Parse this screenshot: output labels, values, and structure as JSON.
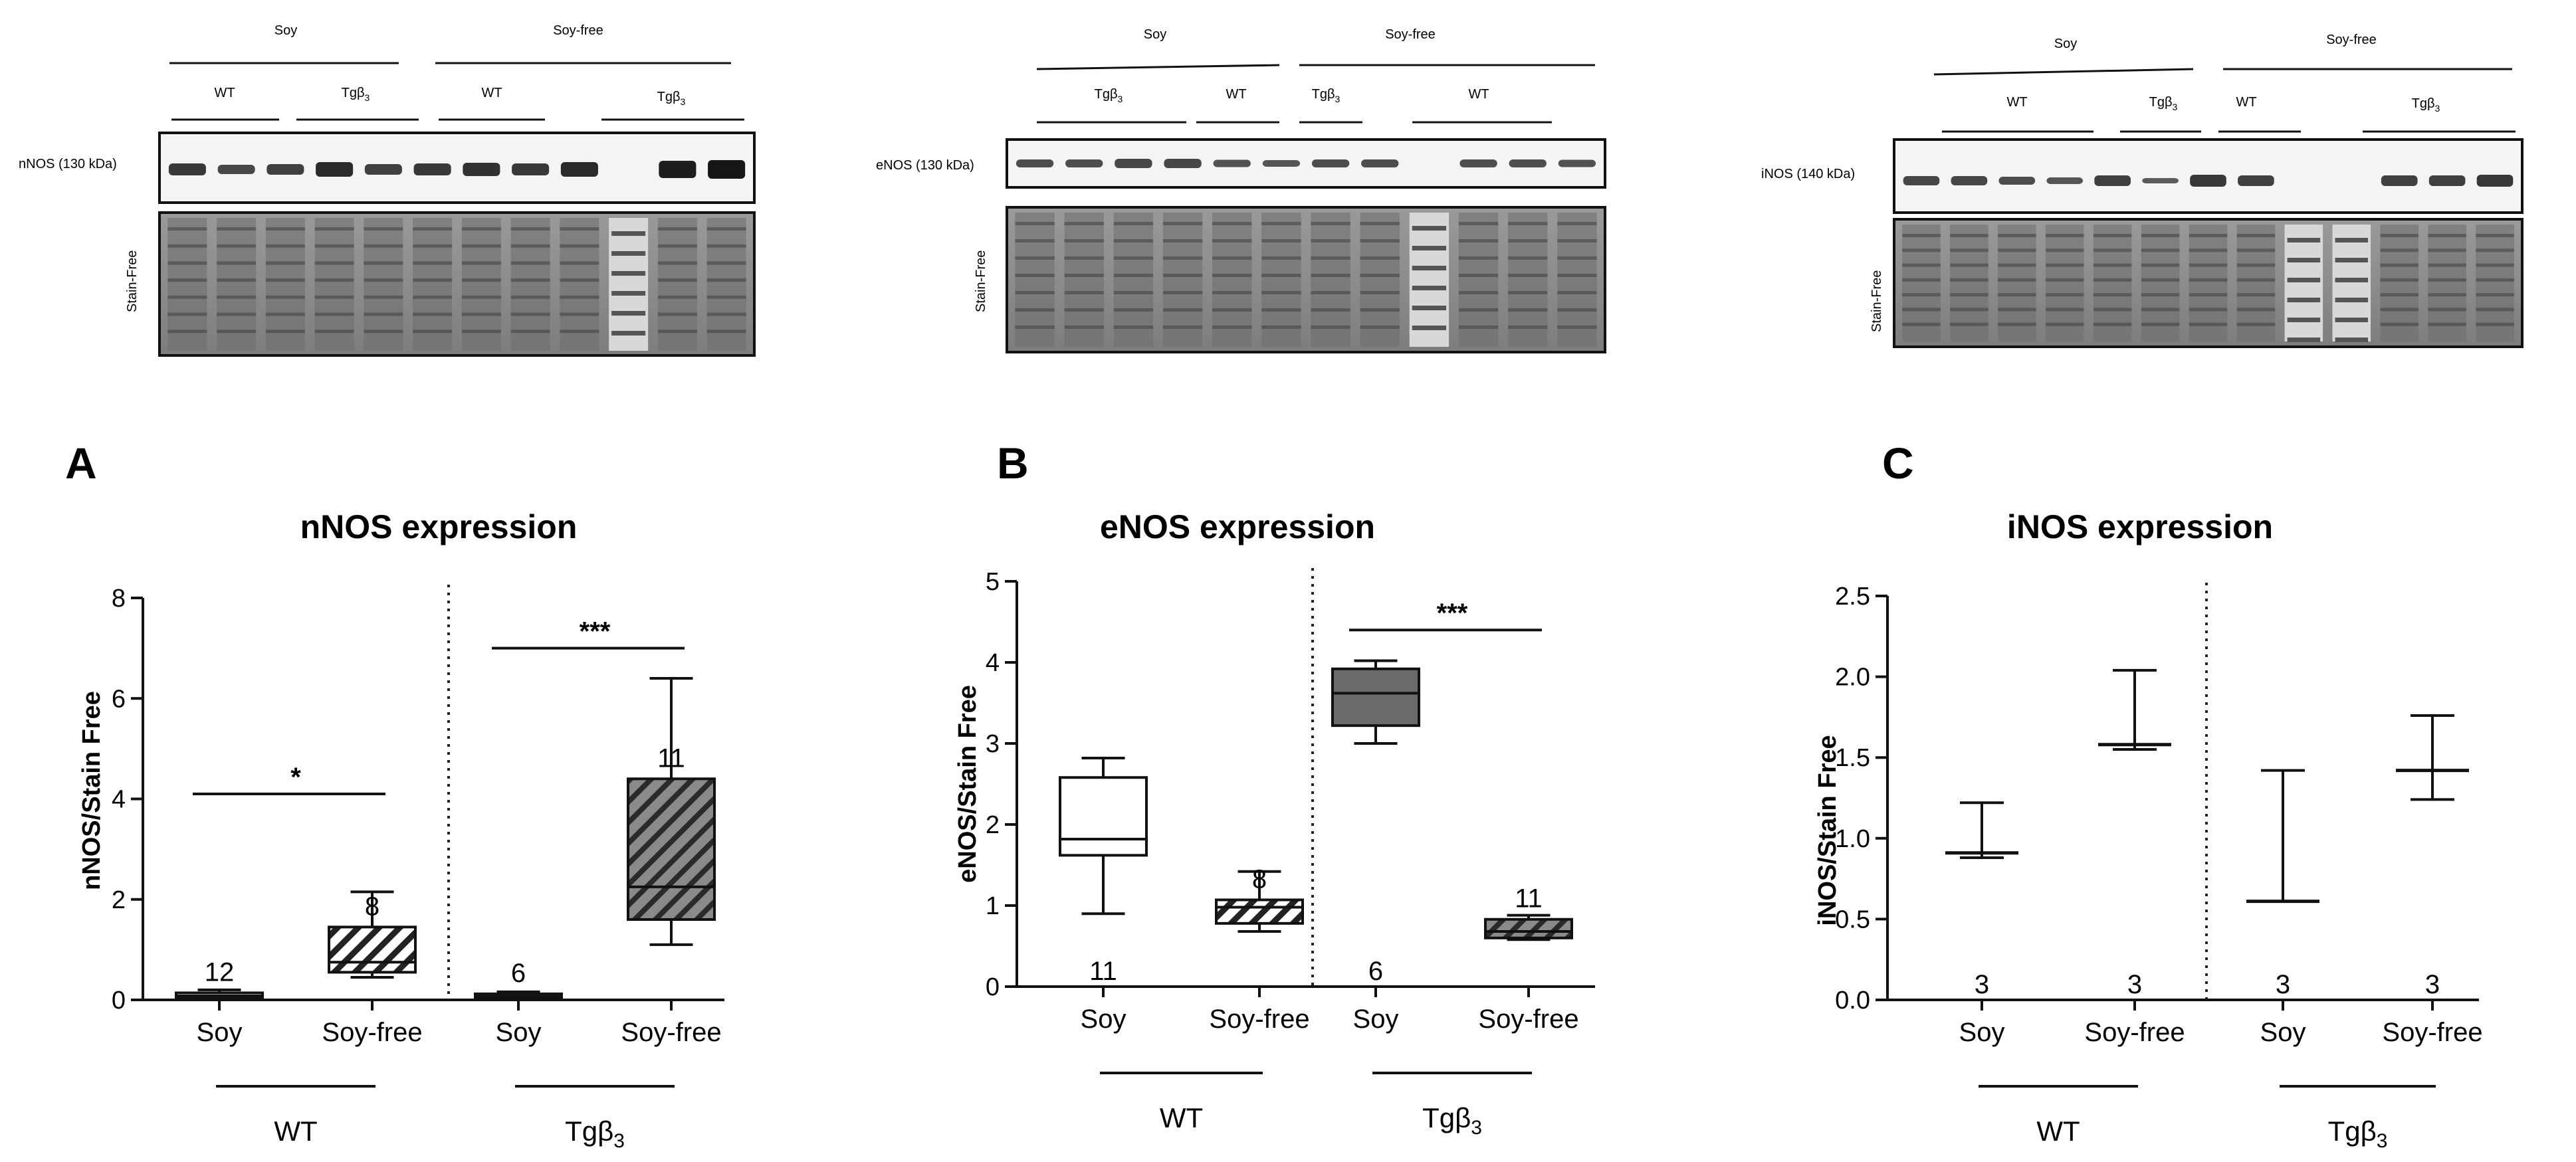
{
  "blots": [
    {
      "id": "nnos",
      "protein_label": "nNOS (130 kDa)",
      "loading_label": "Stain-Free",
      "diet_labels": [
        "Soy",
        "Soy-free"
      ],
      "genotype_labels": [
        {
          "text": "WT",
          "sub": ""
        },
        {
          "text": "Tgβ",
          "sub": "3"
        },
        {
          "text": "WT",
          "sub": ""
        },
        {
          "text": "Tgβ",
          "sub": "3"
        }
      ]
    },
    {
      "id": "enos",
      "protein_label": "eNOS (130 kDa)",
      "loading_label": "Stain-Free",
      "diet_labels": [
        "Soy",
        "Soy-free"
      ],
      "genotype_labels": [
        {
          "text": "Tgβ",
          "sub": "3"
        },
        {
          "text": "WT",
          "sub": ""
        },
        {
          "text": "Tgβ",
          "sub": "3"
        },
        {
          "text": "WT",
          "sub": ""
        }
      ]
    },
    {
      "id": "inos",
      "protein_label": "iNOS (140 kDa)",
      "loading_label": "Stain-Free",
      "diet_labels": [
        "Soy",
        "Soy-free"
      ],
      "genotype_labels": [
        {
          "text": "WT",
          "sub": ""
        },
        {
          "text": "Tgβ",
          "sub": "3"
        },
        {
          "text": "WT",
          "sub": ""
        },
        {
          "text": "Tgβ",
          "sub": "3"
        }
      ]
    }
  ],
  "chart_data": [
    {
      "panel": "A",
      "type": "box",
      "title": "nNOS expression",
      "ylabel": "nNOS/Stain Free",
      "ylim": [
        0,
        8
      ],
      "yticks": [
        0,
        2,
        4,
        6,
        8
      ],
      "ytick_labels": [
        "0",
        "2",
        "4",
        "6",
        "8"
      ],
      "categories": [
        "Soy",
        "Soy-free",
        "Soy",
        "Soy-free"
      ],
      "groups": [
        {
          "name": "WT",
          "sub": ""
        },
        {
          "name": "Tgβ",
          "sub": "3"
        }
      ],
      "series": [
        {
          "category": "Soy",
          "group": "WT",
          "n": "12",
          "fill": "white",
          "min": 0.02,
          "q1": 0.04,
          "median": 0.08,
          "q3": 0.14,
          "max": 0.2
        },
        {
          "category": "Soy-free",
          "group": "WT",
          "n": "8",
          "fill": "hatch",
          "min": 0.45,
          "q1": 0.55,
          "median": 0.75,
          "q3": 1.45,
          "max": 2.15
        },
        {
          "category": "Soy",
          "group": "Tgβ3",
          "n": "6",
          "fill": "white",
          "min": 0.02,
          "q1": 0.04,
          "median": 0.07,
          "q3": 0.12,
          "max": 0.16
        },
        {
          "category": "Soy-free",
          "group": "Tgβ3",
          "n": "11",
          "fill": "dark-hatch",
          "min": 1.1,
          "q1": 1.6,
          "median": 2.25,
          "q3": 4.4,
          "max": 6.4
        }
      ],
      "significance": [
        {
          "from": 0,
          "to": 1,
          "y": 4.1,
          "label": "*"
        },
        {
          "from": 2,
          "to": 3,
          "y": 7.0,
          "label": "***"
        }
      ]
    },
    {
      "panel": "B",
      "type": "box",
      "title": "eNOS expression",
      "ylabel": "eNOS/Stain Free",
      "ylim": [
        0,
        5
      ],
      "yticks": [
        0,
        1,
        2,
        3,
        4,
        5
      ],
      "ytick_labels": [
        "0",
        "1",
        "2",
        "3",
        "4",
        "5"
      ],
      "categories": [
        "Soy",
        "Soy-free",
        "Soy",
        "Soy-free"
      ],
      "groups": [
        {
          "name": "WT",
          "sub": ""
        },
        {
          "name": "Tgβ",
          "sub": "3"
        }
      ],
      "series": [
        {
          "category": "Soy",
          "group": "WT",
          "n": "11",
          "fill": "white",
          "min": 0.9,
          "q1": 1.62,
          "median": 1.82,
          "q3": 2.58,
          "max": 2.82
        },
        {
          "category": "Soy-free",
          "group": "WT",
          "n": "8",
          "fill": "hatch",
          "min": 0.68,
          "q1": 0.78,
          "median": 0.98,
          "q3": 1.07,
          "max": 1.42
        },
        {
          "category": "Soy",
          "group": "Tgβ3",
          "n": "6",
          "fill": "gray",
          "min": 3.0,
          "q1": 3.22,
          "median": 3.62,
          "q3": 3.92,
          "max": 4.02
        },
        {
          "category": "Soy-free",
          "group": "Tgβ3",
          "n": "11",
          "fill": "dark-hatch",
          "min": 0.58,
          "q1": 0.6,
          "median": 0.68,
          "q3": 0.83,
          "max": 0.88
        }
      ],
      "significance": [
        {
          "from": 2,
          "to": 3,
          "y": 4.4,
          "label": "***"
        }
      ]
    },
    {
      "panel": "C",
      "type": "floating-bar",
      "title": "iNOS expression",
      "ylabel": "iNOS/Stain Free",
      "ylim": [
        0,
        2.5
      ],
      "yticks": [
        0,
        0.5,
        1.0,
        1.5,
        2.0,
        2.5
      ],
      "ytick_labels": [
        "0.0",
        "0.5",
        "1.0",
        "1.5",
        "2.0",
        "2.5"
      ],
      "categories": [
        "Soy",
        "Soy-free",
        "Soy",
        "Soy-free"
      ],
      "groups": [
        {
          "name": "WT",
          "sub": ""
        },
        {
          "name": "Tgβ",
          "sub": "3"
        }
      ],
      "series": [
        {
          "category": "Soy",
          "group": "WT",
          "n": "3",
          "min": 0.88,
          "median": 0.91,
          "max": 1.22
        },
        {
          "category": "Soy-free",
          "group": "WT",
          "n": "3",
          "min": 1.55,
          "median": 1.58,
          "max": 2.04
        },
        {
          "category": "Soy",
          "group": "Tgβ3",
          "n": "3",
          "min": 0.61,
          "median": 0.61,
          "max": 1.42
        },
        {
          "category": "Soy-free",
          "group": "Tgβ3",
          "n": "3",
          "min": 1.24,
          "median": 1.42,
          "max": 1.76
        }
      ],
      "significance": []
    }
  ]
}
